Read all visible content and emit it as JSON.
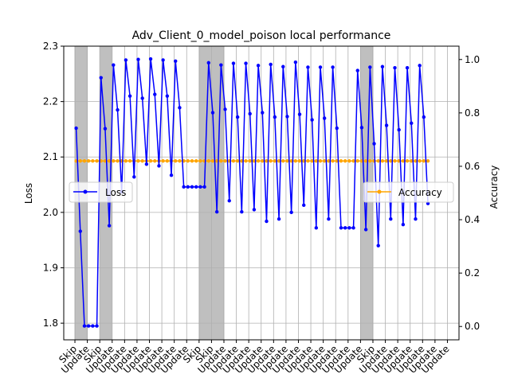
{
  "chart_data": {
    "type": "line",
    "title": "Adv_Client_0_model_poison local performance",
    "ylabel_left": "Loss",
    "ylabel_right": "Accuracy",
    "xlabel": "",
    "ylim_left": [
      1.77,
      2.3
    ],
    "ylim_right": [
      -0.05,
      1.05
    ],
    "yticks_left": [
      "1.8",
      "1.9",
      "2.0",
      "2.1",
      "2.2",
      "2.3"
    ],
    "yticks_right": [
      "0.0",
      "0.2",
      "0.4",
      "0.6",
      "0.8",
      "1.0"
    ],
    "grid": true,
    "xticks": [
      {
        "label": "Skip",
        "x": -0.3
      },
      {
        "label": "Update",
        "x": 2.7
      },
      {
        "label": "Skip",
        "x": 5.7
      },
      {
        "label": "Update",
        "x": 8.7
      },
      {
        "label": "Update",
        "x": 11.7
      },
      {
        "label": "Update",
        "x": 14.7
      },
      {
        "label": "Update",
        "x": 17.7
      },
      {
        "label": "Update",
        "x": 20.7
      },
      {
        "label": "Update",
        "x": 23.7
      },
      {
        "label": "Update",
        "x": 26.7
      },
      {
        "label": "Skip",
        "x": 29.7
      },
      {
        "label": "Skip",
        "x": 32.7
      },
      {
        "label": "Update",
        "x": 35.7
      },
      {
        "label": "Update",
        "x": 38.7
      },
      {
        "label": "Update",
        "x": 41.7
      },
      {
        "label": "Update",
        "x": 44.7
      },
      {
        "label": "Update",
        "x": 47.7
      },
      {
        "label": "Update",
        "x": 50.7
      },
      {
        "label": "Update",
        "x": 53.7
      },
      {
        "label": "Update",
        "x": 56.7
      },
      {
        "label": "Update",
        "x": 59.7
      },
      {
        "label": "Update",
        "x": 62.7
      },
      {
        "label": "Update",
        "x": 65.7
      },
      {
        "label": "Update",
        "x": 68.7
      },
      {
        "label": "Skip",
        "x": 71.7
      },
      {
        "label": "Update",
        "x": 74.7
      },
      {
        "label": "Update",
        "x": 77.7
      },
      {
        "label": "Update",
        "x": 80.7
      },
      {
        "label": "Update",
        "x": 83.7
      },
      {
        "label": "Update",
        "x": 86.7
      },
      {
        "label": "Update",
        "x": 89.7
      }
    ],
    "skip_bands": [
      [
        -0.3,
        2.7
      ],
      [
        5.7,
        8.7
      ],
      [
        29.7,
        35.7
      ],
      [
        68.7,
        71.7
      ]
    ],
    "x_range": [
      -3.0,
      92.5
    ],
    "series": [
      {
        "name": "Loss",
        "color": "#0000ff",
        "axis": "left",
        "values": [
          2.152,
          1.966,
          1.795,
          1.795,
          1.795,
          1.795,
          2.243,
          2.151,
          1.976,
          2.266,
          2.185,
          2.037,
          2.275,
          2.21,
          2.064,
          2.276,
          2.206,
          2.087,
          2.277,
          2.213,
          2.084,
          2.275,
          2.21,
          2.067,
          2.273,
          2.189,
          2.046,
          2.046,
          2.046,
          2.046,
          2.046,
          2.046,
          2.27,
          2.18,
          2.001,
          2.266,
          2.186,
          2.021,
          2.269,
          2.172,
          2.001,
          2.269,
          2.178,
          2.005,
          2.265,
          2.18,
          1.984,
          2.267,
          2.172,
          1.988,
          2.263,
          2.173,
          2.0,
          2.271,
          2.177,
          2.013,
          2.262,
          2.167,
          1.972,
          2.262,
          2.17,
          1.988,
          2.262,
          2.152,
          1.972,
          1.972,
          1.972,
          1.972,
          2.256,
          2.153,
          1.969,
          2.262,
          2.124,
          1.94,
          2.263,
          2.157,
          1.988,
          2.261,
          2.149,
          1.978,
          2.261,
          2.161,
          1.988,
          2.265,
          2.172,
          2.016
        ]
      },
      {
        "name": "Accuracy",
        "color": "#ffa500",
        "axis": "right",
        "constant_value": 0.62,
        "count": 86
      }
    ],
    "legend": [
      {
        "label": "Loss",
        "placement": "center-left"
      },
      {
        "label": "Accuracy",
        "placement": "center-right"
      }
    ]
  }
}
